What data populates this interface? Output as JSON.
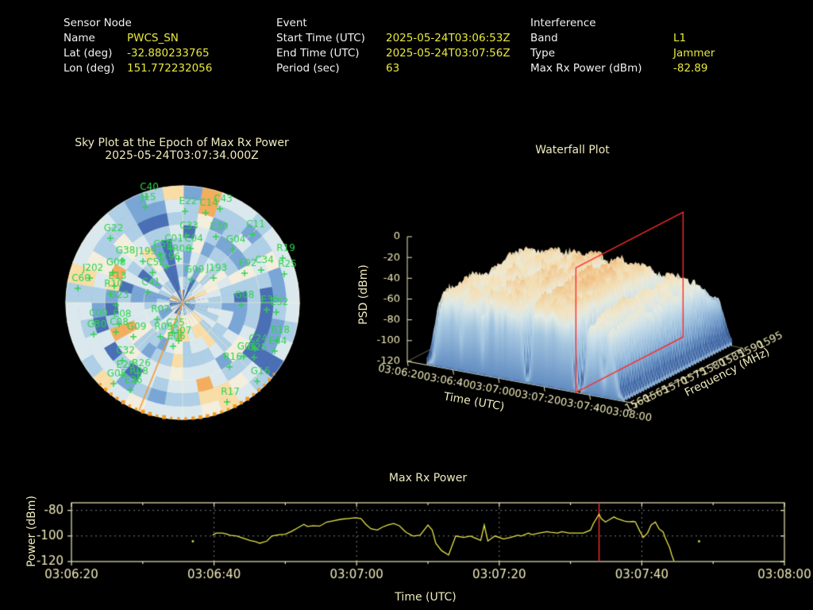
{
  "colors": {
    "background": "#000000",
    "label_white": "#f2f2f2",
    "value_yellow": "#e9e93f",
    "pale_yellow": "#efe9b8",
    "satellite_green": "#2fd24f",
    "jammer_orange": "#f59a1e",
    "marker_red": "#ff2a2a",
    "series_yellow": "#e6e34a"
  },
  "header": {
    "sections": [
      {
        "title": "Sensor Node",
        "rows": [
          {
            "label": "Name",
            "value": "PWCS_SN"
          },
          {
            "label": "Lat (deg)",
            "value": "-32.880233765"
          },
          {
            "label": "Lon (deg)",
            "value": "151.772232056"
          }
        ]
      },
      {
        "title": "Event",
        "rows": [
          {
            "label": "Start Time (UTC)",
            "value": "2025-05-24T03:06:53Z"
          },
          {
            "label": "End Time (UTC)",
            "value": "2025-05-24T03:07:56Z"
          },
          {
            "label": "Period (sec)",
            "value": "63"
          }
        ]
      },
      {
        "title": "Interference",
        "rows": [
          {
            "label": "Band",
            "value": "L1"
          },
          {
            "label": "Type",
            "value": "Jammer"
          },
          {
            "label": "Max Rx Power (dBm)",
            "value": "-82.89"
          }
        ]
      }
    ]
  },
  "chart_data": [
    {
      "type": "heatmap",
      "subtype": "polar-sky-plot",
      "title": "Sky Plot at the Epoch of Max Rx Power",
      "subtitle": "2025-05-24T03:07:34.000Z",
      "center": [
        230,
        381
      ],
      "radius": 147,
      "rings": 9,
      "sectors": 36,
      "jammer_bearing_deg": 202,
      "interference_arc_deg": [
        128,
        226
      ],
      "palette": [
        "#4a6fb5",
        "#7aa6d6",
        "#aecfe5",
        "#dbe9ef",
        "#f3eedd",
        "#f9dda6",
        "#f3ad5f"
      ],
      "satellites": [
        [
          "C40",
          188,
          236
        ],
        [
          "J15",
          187,
          249
        ],
        [
          "E22",
          237,
          254
        ],
        [
          "C14",
          263,
          256
        ],
        [
          "C43",
          281,
          251
        ],
        [
          "G22",
          143,
          288
        ],
        [
          "C33",
          238,
          285
        ],
        [
          "E30",
          276,
          286
        ],
        [
          "C11",
          322,
          283
        ],
        [
          "G04",
          297,
          302
        ],
        [
          "C01",
          219,
          301
        ],
        [
          "C04",
          244,
          301
        ],
        [
          "C59",
          205,
          308
        ],
        [
          "R06",
          229,
          314
        ],
        [
          "G38",
          158,
          316
        ],
        [
          "J199",
          184,
          317
        ],
        [
          "J196",
          214,
          324
        ],
        [
          "C52",
          196,
          331
        ],
        [
          "G08",
          146,
          331
        ],
        [
          "R19",
          360,
          313
        ],
        [
          "C34",
          333,
          328
        ],
        [
          "E02",
          312,
          332
        ],
        [
          "R25",
          362,
          333
        ],
        [
          "J202",
          117,
          338
        ],
        [
          "C60",
          102,
          351
        ],
        [
          "E13",
          148,
          348
        ],
        [
          "R10",
          143,
          358
        ],
        [
          "G23",
          150,
          372
        ],
        [
          "C41",
          190,
          356
        ],
        [
          "G09",
          245,
          340
        ],
        [
          "J193",
          273,
          338
        ],
        [
          "G08",
          308,
          372
        ],
        [
          "E35",
          340,
          378
        ],
        [
          "E52",
          352,
          381
        ],
        [
          "R07",
          202,
          390
        ],
        [
          "C09",
          124,
          395
        ],
        [
          "E08",
          154,
          396
        ],
        [
          "G30",
          122,
          409
        ],
        [
          "C08",
          150,
          406
        ],
        [
          "G09",
          172,
          412
        ],
        [
          "R09",
          206,
          412
        ],
        [
          "C25",
          221,
          407
        ],
        [
          "G07",
          229,
          417
        ],
        [
          "E06",
          222,
          424
        ],
        [
          "C32",
          158,
          442
        ],
        [
          "E26",
          158,
          460
        ],
        [
          "R26",
          178,
          458
        ],
        [
          "G05",
          147,
          471
        ],
        [
          "R08",
          175,
          468
        ],
        [
          "E36",
          168,
          479
        ],
        [
          "R16",
          293,
          450
        ],
        [
          "C24",
          325,
          427
        ],
        [
          "E44",
          350,
          430
        ],
        [
          "G06",
          311,
          437
        ],
        [
          "G25",
          324,
          438
        ],
        [
          "R18",
          353,
          416
        ],
        [
          "G16",
          328,
          468
        ],
        [
          "R17",
          290,
          494
        ]
      ]
    },
    {
      "type": "surface",
      "title": "Waterfall Plot",
      "xlabel": "Time (UTC)",
      "ylabel": "Frequency (MHz)",
      "zlabel": "PSD (dBm)",
      "time_ticks": [
        "03:06:20",
        "03:06:40",
        "03:07:00",
        "03:07:20",
        "03:07:40",
        "03:08:00"
      ],
      "freq_ticks": [
        1560,
        1565,
        1570,
        1575,
        1580,
        1585,
        1590,
        1595
      ],
      "psd_ticks": [
        0,
        -20,
        -40,
        -60,
        -80,
        -100,
        -120
      ],
      "freq_range_mhz": [
        1560,
        1595
      ],
      "psd_range_dbm": [
        -120,
        0
      ],
      "plateau_psd_dbm": -40,
      "marker_time": "03:07:34"
    },
    {
      "type": "line",
      "title": "Max Rx Power",
      "xlabel": "Time (UTC)",
      "ylabel": "Power (dBm)",
      "x_ticks": [
        "03:06:20",
        "03:06:40",
        "03:07:00",
        "03:07:20",
        "03:07:40",
        "03:08:00"
      ],
      "x_tick_seconds": [
        0,
        20,
        40,
        60,
        80,
        100
      ],
      "y_ticks": [
        -80,
        -100,
        -120
      ],
      "ylim": [
        -120,
        -74
      ],
      "x0_time": "03:06:20",
      "marker_seconds": 74,
      "marker_time": "03:07:34",
      "max_value_dbm": -82.89,
      "isolated_points": [
        [
          17,
          -104
        ],
        [
          88,
          -104
        ]
      ],
      "series": [
        {
          "name": "max_rx_power_dbm",
          "points": [
            [
              19.8,
              -99.4
            ],
            [
              20.3,
              -97.7
            ],
            [
              21.1,
              -97.7
            ],
            [
              21.7,
              -98.3
            ],
            [
              22.2,
              -99.4
            ],
            [
              23.2,
              -100
            ],
            [
              24.1,
              -101.7
            ],
            [
              25.0,
              -103.4
            ],
            [
              25.9,
              -104.6
            ],
            [
              26.4,
              -105.7
            ],
            [
              27.4,
              -104
            ],
            [
              28.1,
              -100
            ],
            [
              29.2,
              -98.9
            ],
            [
              30.0,
              -98.6
            ],
            [
              31.0,
              -96
            ],
            [
              31.7,
              -93.7
            ],
            [
              32.6,
              -90.9
            ],
            [
              33.1,
              -92.6
            ],
            [
              33.9,
              -92
            ],
            [
              34.8,
              -92.3
            ],
            [
              35.8,
              -89.1
            ],
            [
              36.8,
              -88
            ],
            [
              37.8,
              -86.9
            ],
            [
              38.8,
              -86.3
            ],
            [
              39.8,
              -85.7
            ],
            [
              40.6,
              -86.3
            ],
            [
              41.3,
              -90.9
            ],
            [
              42.0,
              -94.3
            ],
            [
              42.9,
              -95.4
            ],
            [
              43.6,
              -93.1
            ],
            [
              44.4,
              -91.4
            ],
            [
              45.2,
              -90.3
            ],
            [
              46.0,
              -92.0
            ],
            [
              46.9,
              -97.0
            ],
            [
              47.9,
              -100
            ],
            [
              48.9,
              -99.4
            ],
            [
              50.0,
              -91.4
            ],
            [
              50.6,
              -95.4
            ],
            [
              51.1,
              -105.7
            ],
            [
              51.9,
              -111.4
            ],
            [
              52.9,
              -114.9
            ],
            [
              53.9,
              -100
            ],
            [
              55.0,
              -101.1
            ],
            [
              56.0,
              -100
            ],
            [
              56.4,
              -101.1
            ],
            [
              57.4,
              -103.4
            ],
            [
              57.9,
              -91.4
            ],
            [
              58.4,
              -104
            ],
            [
              59.4,
              -100
            ],
            [
              60.6,
              -102.3
            ],
            [
              61.6,
              -101.1
            ],
            [
              62.6,
              -99.4
            ],
            [
              63.1,
              -100
            ],
            [
              64.1,
              -97.7
            ],
            [
              64.6,
              -98.9
            ],
            [
              65.6,
              -97.7
            ],
            [
              66.7,
              -96.6
            ],
            [
              67.2,
              -97.1
            ],
            [
              68.2,
              -97.7
            ],
            [
              68.8,
              -96.6
            ],
            [
              69.8,
              -97.7
            ],
            [
              70.8,
              -97.7
            ],
            [
              71.8,
              -97.7
            ],
            [
              72.8,
              -95.4
            ],
            [
              73.2,
              -90.3
            ],
            [
              74.0,
              -82.9
            ],
            [
              74.3,
              -86.3
            ],
            [
              74.9,
              -89.1
            ],
            [
              75.4,
              -87.4
            ],
            [
              76.1,
              -85.1
            ],
            [
              76.5,
              -86.3
            ],
            [
              77.1,
              -87.4
            ],
            [
              77.7,
              -88.6
            ],
            [
              78.2,
              -88.9
            ],
            [
              78.8,
              -88.6
            ],
            [
              79.1,
              -88.9
            ],
            [
              79.7,
              -96
            ],
            [
              80.2,
              -101.1
            ],
            [
              80.8,
              -97.7
            ],
            [
              81.3,
              -91.4
            ],
            [
              81.9,
              -89.1
            ],
            [
              82.4,
              -94.3
            ],
            [
              83.0,
              -97
            ],
            [
              83.3,
              -101.7
            ],
            [
              83.9,
              -109.1
            ],
            [
              84.2,
              -114.9
            ],
            [
              84.5,
              -119.5
            ]
          ]
        }
      ]
    }
  ]
}
